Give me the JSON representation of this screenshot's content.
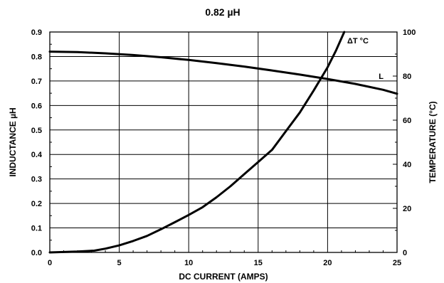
{
  "chart_data": {
    "type": "line",
    "title": "0.82 µH",
    "xlabel": "DC CURRENT (AMPS)",
    "ylabel_left": "INDUCTANCE µH",
    "ylabel_right": "TEMPERATURE (°C)",
    "xlim": [
      0,
      25
    ],
    "ylim_left": [
      0,
      0.9
    ],
    "ylim_right": [
      0,
      100
    ],
    "x_ticks": [
      "0",
      "5",
      "10",
      "15",
      "20",
      "25"
    ],
    "y_left_ticks": [
      "0.0",
      "0.1",
      "0.2",
      "0.3",
      "0.4",
      "0.5",
      "0.6",
      "0.7",
      "0.8",
      "0.9"
    ],
    "y_right_ticks": [
      "0",
      "20",
      "40",
      "60",
      "80",
      "100"
    ],
    "grid": true,
    "series": [
      {
        "name": "L",
        "axis": "left",
        "x": [
          0,
          2,
          4,
          6,
          8,
          10,
          12,
          14,
          16,
          18,
          20,
          22,
          24,
          25
        ],
        "y": [
          0.82,
          0.818,
          0.813,
          0.806,
          0.797,
          0.786,
          0.773,
          0.759,
          0.743,
          0.726,
          0.708,
          0.688,
          0.664,
          0.648
        ]
      },
      {
        "name": "ΔT °C",
        "axis": "right",
        "x": [
          0,
          1,
          2,
          3.2,
          4,
          5,
          6,
          7,
          8,
          9,
          10,
          11,
          12,
          13,
          14,
          15,
          16,
          17,
          18,
          19,
          20,
          20.6,
          21.2
        ],
        "y": [
          0,
          0.2,
          0.4,
          0.8,
          1.7,
          3.2,
          5.2,
          7.5,
          10.5,
          13.7,
          17,
          20.5,
          25,
          30,
          35.5,
          41,
          46.5,
          55,
          63.5,
          73.5,
          84,
          91.5,
          100
        ]
      }
    ]
  }
}
